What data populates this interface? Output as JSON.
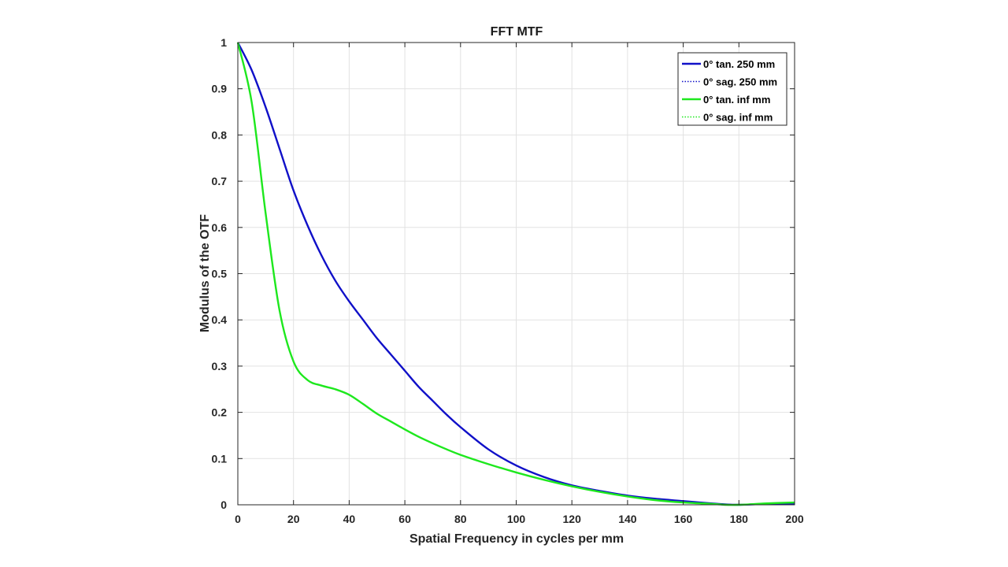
{
  "chart_data": {
    "type": "line",
    "title": "FFT MTF",
    "xlabel": "Spatial Frequency in cycles per mm",
    "ylabel": "Modulus of the OTF",
    "xlim": [
      0,
      200
    ],
    "ylim": [
      0,
      1
    ],
    "xticks": [
      0,
      20,
      40,
      60,
      80,
      100,
      120,
      140,
      160,
      180,
      200
    ],
    "yticks": [
      0,
      0.1,
      0.2,
      0.3,
      0.4,
      0.5,
      0.6,
      0.7,
      0.8,
      0.9,
      1
    ],
    "grid": true,
    "legend_position": "top-right",
    "x": [
      0,
      5,
      10,
      15,
      20,
      25,
      30,
      35,
      40,
      45,
      50,
      55,
      60,
      65,
      70,
      75,
      80,
      90,
      100,
      110,
      120,
      130,
      140,
      150,
      160,
      170,
      175,
      180,
      190,
      200
    ],
    "series": [
      {
        "name": "0° tan. 250 mm",
        "color": "#1010c8",
        "style": "solid",
        "values": [
          1.0,
          0.94,
          0.86,
          0.77,
          0.68,
          0.605,
          0.54,
          0.485,
          0.44,
          0.4,
          0.36,
          0.325,
          0.29,
          0.255,
          0.225,
          0.195,
          0.168,
          0.12,
          0.085,
          0.06,
          0.042,
          0.03,
          0.02,
          0.013,
          0.008,
          0.003,
          0.001,
          0.0,
          0.002,
          0.003
        ]
      },
      {
        "name": "0° sag. 250 mm",
        "color": "#1010c8",
        "style": "dotted",
        "values": [
          1.0,
          0.94,
          0.86,
          0.77,
          0.68,
          0.605,
          0.54,
          0.485,
          0.44,
          0.4,
          0.36,
          0.325,
          0.29,
          0.255,
          0.225,
          0.195,
          0.168,
          0.12,
          0.085,
          0.06,
          0.042,
          0.03,
          0.02,
          0.013,
          0.008,
          0.003,
          0.001,
          0.0,
          0.002,
          0.003
        ]
      },
      {
        "name": "0° tan. inf mm",
        "color": "#1ee81e",
        "style": "solid",
        "values": [
          1.0,
          0.87,
          0.63,
          0.42,
          0.31,
          0.27,
          0.258,
          0.25,
          0.238,
          0.218,
          0.197,
          0.18,
          0.163,
          0.147,
          0.133,
          0.12,
          0.108,
          0.088,
          0.07,
          0.054,
          0.04,
          0.028,
          0.018,
          0.01,
          0.005,
          0.002,
          0.0,
          0.0,
          0.003,
          0.005
        ]
      },
      {
        "name": "0° sag. inf mm",
        "color": "#1ee81e",
        "style": "dotted",
        "values": [
          1.0,
          0.87,
          0.63,
          0.42,
          0.31,
          0.27,
          0.258,
          0.25,
          0.238,
          0.218,
          0.197,
          0.18,
          0.163,
          0.147,
          0.133,
          0.12,
          0.108,
          0.088,
          0.07,
          0.054,
          0.04,
          0.028,
          0.018,
          0.01,
          0.005,
          0.002,
          0.0,
          0.0,
          0.003,
          0.005
        ]
      }
    ]
  }
}
